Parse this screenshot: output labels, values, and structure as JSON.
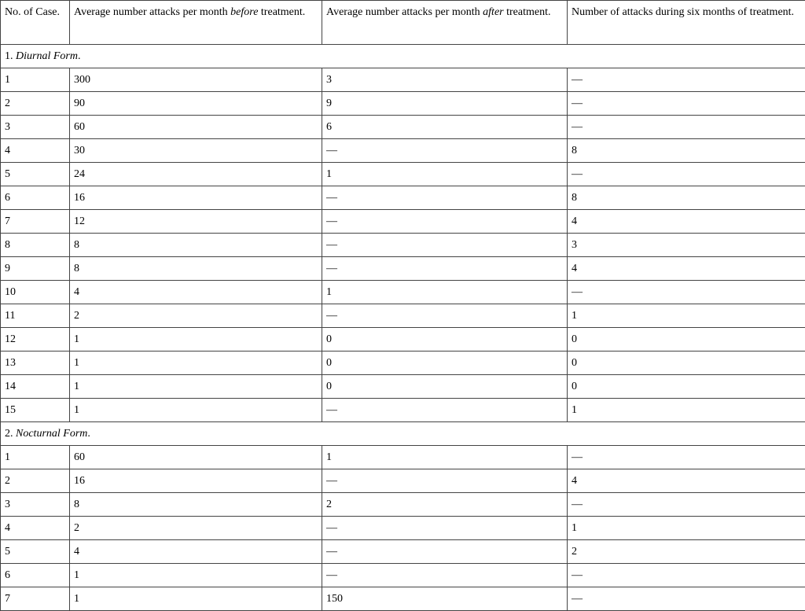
{
  "headers": [
    {
      "pre": "No. of Case.",
      "em": "",
      "post": ""
    },
    {
      "pre": "Average number attacks per month ",
      "em": "before",
      "post": " treatment."
    },
    {
      "pre": "Average number attacks per month ",
      "em": "after",
      "post": " treatment."
    },
    {
      "pre": "Number of attacks during six months of treatment.",
      "em": "",
      "post": ""
    }
  ],
  "sections": [
    {
      "num": "1. ",
      "title": "Diurnal Form",
      "end": ".",
      "rows": [
        [
          "1",
          "300",
          "3",
          "—"
        ],
        [
          "2",
          "90",
          "9",
          "—"
        ],
        [
          "3",
          "60",
          "6",
          "—"
        ],
        [
          "4",
          "30",
          "—",
          "8"
        ],
        [
          "5",
          "24",
          "1",
          "—"
        ],
        [
          "6",
          "16",
          "—",
          "8"
        ],
        [
          "7",
          "12",
          "—",
          "4"
        ],
        [
          "8",
          "8",
          "—",
          "3"
        ],
        [
          "9",
          "8",
          "—",
          "4"
        ],
        [
          "10",
          "4",
          "1",
          "—"
        ],
        [
          "11",
          "2",
          "—",
          "1"
        ],
        [
          "12",
          "1",
          "0",
          "0"
        ],
        [
          "13",
          "1",
          "0",
          "0"
        ],
        [
          "14",
          "1",
          "0",
          "0"
        ],
        [
          "15",
          "1",
          "—",
          "1"
        ]
      ]
    },
    {
      "num": "2. ",
      "title": "Nocturnal Form",
      "end": ".",
      "rows": [
        [
          "1",
          "60",
          "1",
          "—"
        ],
        [
          "2",
          "16",
          "—",
          "4"
        ],
        [
          "3",
          "8",
          "2",
          "—"
        ],
        [
          "4",
          "2",
          "—",
          "1"
        ],
        [
          "5",
          "4",
          "—",
          "2"
        ],
        [
          "6",
          "1",
          "—",
          "—"
        ],
        [
          "7",
          "1",
          "150",
          "—"
        ]
      ]
    }
  ]
}
